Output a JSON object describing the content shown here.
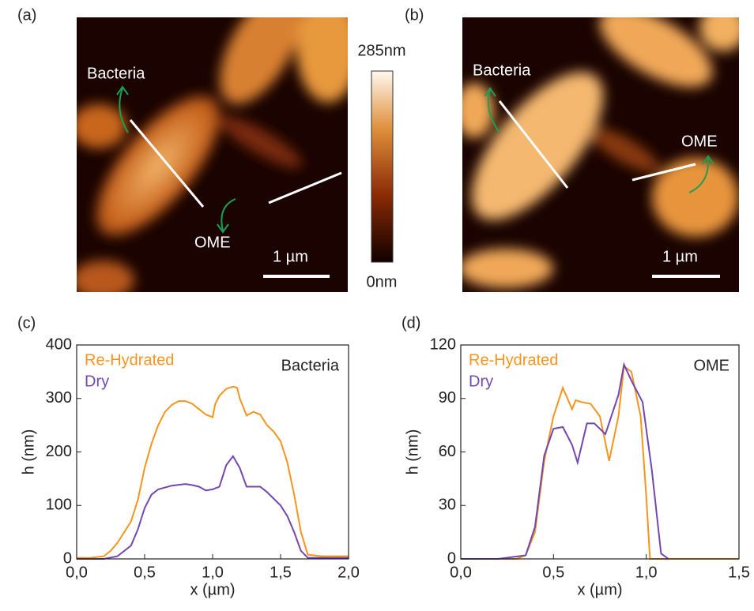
{
  "panels": [
    {
      "label": "(a)",
      "annotations": [
        "Bacteria",
        "OME"
      ],
      "scale_bar": "1 µm"
    },
    {
      "label": "(b)",
      "annotations": [
        "Bacteria",
        "OME"
      ],
      "scale_bar": "1 µm"
    }
  ],
  "colorbar": {
    "max_label": "285nm",
    "min_label": "0nm"
  },
  "chart_data": [
    {
      "type": "line",
      "panel_label": "(c)",
      "annotation": "Bacteria",
      "x_label": "x (µm)",
      "y_label": "h (nm)",
      "xlim": [
        0,
        2
      ],
      "xticks": [
        {
          "value": 0,
          "label": "0,0"
        },
        {
          "value": 0.5,
          "label": "0,5"
        },
        {
          "value": 1,
          "label": "1,0"
        },
        {
          "value": 1.5,
          "label": "1,5"
        },
        {
          "value": 2,
          "label": "2,0"
        }
      ],
      "ylim": [
        0,
        400
      ],
      "yticks": [
        0,
        100,
        200,
        300,
        400
      ],
      "series": [
        {
          "name": "Re-Hydrated",
          "color": "#f7941d",
          "x": [
            0,
            0.1,
            0.2,
            0.25,
            0.3,
            0.35,
            0.4,
            0.45,
            0.5,
            0.55,
            0.6,
            0.65,
            0.7,
            0.75,
            0.8,
            0.85,
            0.9,
            0.95,
            1.0,
            1.02,
            1.05,
            1.1,
            1.15,
            1.18,
            1.2,
            1.25,
            1.3,
            1.35,
            1.4,
            1.45,
            1.5,
            1.55,
            1.6,
            1.65,
            1.7,
            1.8,
            2.0
          ],
          "values": [
            2,
            2,
            5,
            15,
            30,
            50,
            70,
            110,
            170,
            215,
            250,
            275,
            288,
            295,
            295,
            290,
            280,
            270,
            265,
            290,
            305,
            318,
            322,
            320,
            300,
            268,
            275,
            270,
            250,
            238,
            220,
            180,
            120,
            50,
            8,
            5,
            5
          ]
        },
        {
          "name": "Dry",
          "color": "#7048b0",
          "x": [
            0,
            0.2,
            0.3,
            0.4,
            0.45,
            0.5,
            0.55,
            0.6,
            0.7,
            0.8,
            0.85,
            0.9,
            0.95,
            1.0,
            1.05,
            1.1,
            1.15,
            1.2,
            1.25,
            1.3,
            1.35,
            1.4,
            1.5,
            1.55,
            1.6,
            1.65,
            1.7,
            2.0
          ],
          "values": [
            0,
            0,
            5,
            25,
            55,
            95,
            120,
            130,
            137,
            140,
            138,
            135,
            128,
            130,
            135,
            175,
            192,
            170,
            135,
            135,
            135,
            125,
            100,
            80,
            50,
            15,
            2,
            2
          ]
        }
      ]
    },
    {
      "type": "line",
      "panel_label": "(d)",
      "annotation": "OME",
      "x_label": "x (µm)",
      "y_label": "h (nm)",
      "xlim": [
        0,
        1.5
      ],
      "xticks": [
        {
          "value": 0,
          "label": "0,0"
        },
        {
          "value": 0.5,
          "label": "0,5"
        },
        {
          "value": 1,
          "label": "1,0"
        },
        {
          "value": 1.5,
          "label": "1,5"
        }
      ],
      "ylim": [
        0,
        120
      ],
      "yticks": [
        0,
        30,
        60,
        90,
        120
      ],
      "series": [
        {
          "name": "Re-Hydrated",
          "color": "#f7941d",
          "x": [
            0,
            0.1,
            0.2,
            0.3,
            0.35,
            0.4,
            0.45,
            0.5,
            0.55,
            0.6,
            0.62,
            0.65,
            0.7,
            0.75,
            0.8,
            0.85,
            0.88,
            0.92,
            0.97,
            1.0,
            1.02,
            1.5
          ],
          "values": [
            0,
            0,
            0,
            0,
            2,
            15,
            55,
            80,
            96,
            84,
            89,
            88,
            87,
            80,
            55,
            80,
            108,
            105,
            80,
            35,
            0,
            0
          ]
        },
        {
          "name": "Dry",
          "color": "#7048b0",
          "x": [
            0,
            0.2,
            0.35,
            0.4,
            0.45,
            0.5,
            0.55,
            0.6,
            0.63,
            0.68,
            0.72,
            0.78,
            0.85,
            0.88,
            0.92,
            0.98,
            1.03,
            1.08,
            1.12
          ],
          "values": [
            0,
            0,
            2,
            18,
            58,
            73,
            74,
            64,
            54,
            76,
            76,
            70,
            92,
            109,
            100,
            88,
            50,
            3,
            0
          ]
        }
      ]
    }
  ]
}
